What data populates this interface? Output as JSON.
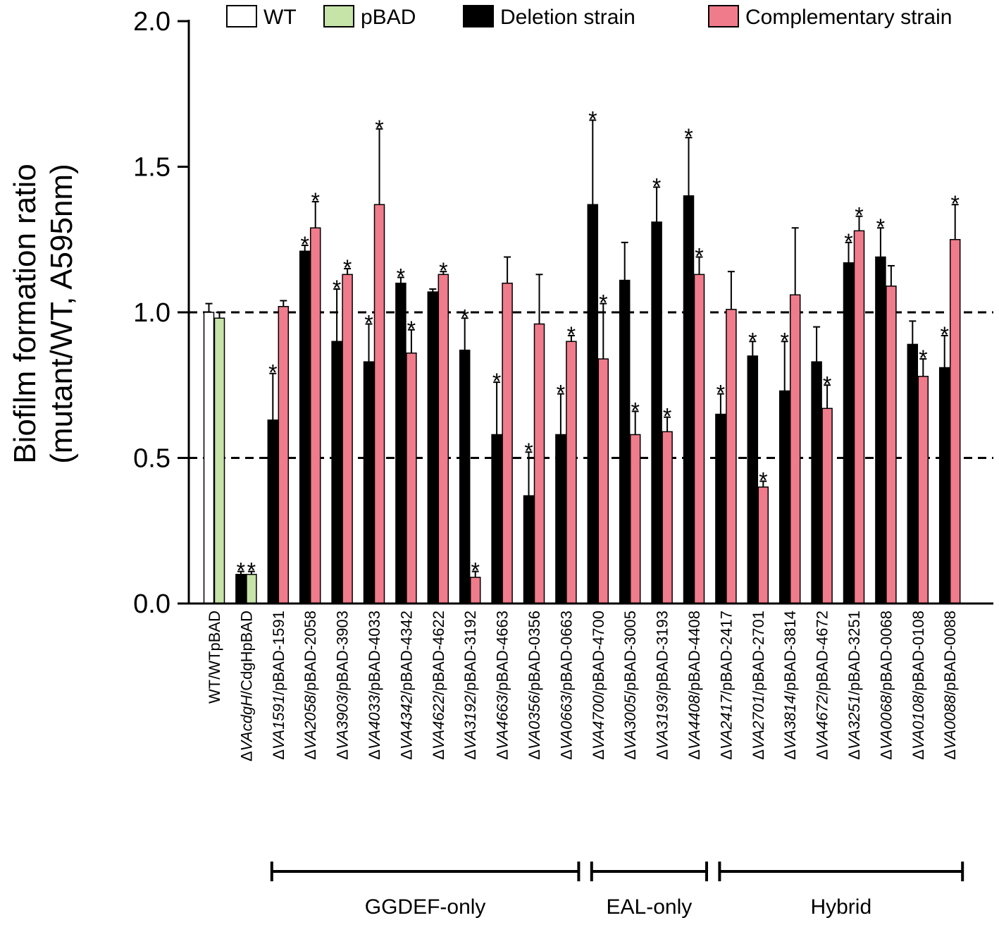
{
  "chart_data": {
    "type": "bar",
    "ylabel_line1": "Biofilm formation ratio",
    "ylabel_line2": "(mutant/WT, A595nm)",
    "ylim": [
      0,
      2.0
    ],
    "yticks": [
      "0.0",
      "0.5",
      "1.0",
      "1.5",
      "2.0"
    ],
    "reference_lines": [
      0.5,
      1.0
    ],
    "legend": [
      {
        "key": "wt",
        "label": "WT",
        "color": "#ffffff"
      },
      {
        "key": "pbad",
        "label": "pBAD",
        "color": "#c6e3a8"
      },
      {
        "key": "deletion",
        "label": "Deletion strain",
        "color": "#000000"
      },
      {
        "key": "complement",
        "label": "Complementary strain",
        "color": "#f07b8b"
      }
    ],
    "categories": [
      {
        "label": "WT/WTpBAD",
        "italic": "",
        "rest": "WT/WTpBAD",
        "bars": [
          {
            "series": "wt",
            "value": 1.0,
            "err": 0.03,
            "star": false
          },
          {
            "series": "pbad",
            "value": 0.98,
            "err": 0.02,
            "star": false
          }
        ]
      },
      {
        "label": "ΔVAcdgH/CdgHpBAD",
        "italic": "VAcdgH",
        "rest": "/CdgHpBAD",
        "bars": [
          {
            "series": "deletion",
            "value": 0.1,
            "err": 0.01,
            "star": true
          },
          {
            "series": "pbad",
            "value": 0.1,
            "err": 0.01,
            "star": true
          }
        ]
      },
      {
        "label": "ΔVA1591/pBAD-1591",
        "italic": "VA1591",
        "rest": "/pBAD-1591",
        "bars": [
          {
            "series": "deletion",
            "value": 0.63,
            "err": 0.16,
            "star": true
          },
          {
            "series": "complement",
            "value": 1.02,
            "err": 0.02,
            "star": false
          }
        ]
      },
      {
        "label": "ΔVA2058/pBAD-2058",
        "italic": "VA2058",
        "rest": "/pBAD-2058",
        "bars": [
          {
            "series": "deletion",
            "value": 1.21,
            "err": 0.02,
            "star": true
          },
          {
            "series": "complement",
            "value": 1.29,
            "err": 0.09,
            "star": true
          }
        ]
      },
      {
        "label": "ΔVA3903/pBAD-3903",
        "italic": "VA3903",
        "rest": "/pBAD-3903",
        "bars": [
          {
            "series": "deletion",
            "value": 0.9,
            "err": 0.18,
            "star": true
          },
          {
            "series": "complement",
            "value": 1.13,
            "err": 0.02,
            "star": true
          }
        ]
      },
      {
        "label": "ΔVA4033/pBAD-4033",
        "italic": "VA4033",
        "rest": "/pBAD-4033",
        "bars": [
          {
            "series": "deletion",
            "value": 0.83,
            "err": 0.13,
            "star": true
          },
          {
            "series": "complement",
            "value": 1.37,
            "err": 0.26,
            "star": true
          }
        ]
      },
      {
        "label": "ΔVA4342/pBAD-4342",
        "italic": "VA4342",
        "rest": "/pBAD-4342",
        "bars": [
          {
            "series": "deletion",
            "value": 1.1,
            "err": 0.02,
            "star": true
          },
          {
            "series": "complement",
            "value": 0.86,
            "err": 0.08,
            "star": true
          }
        ]
      },
      {
        "label": "ΔVA4622/pBAD-4622",
        "italic": "VA4622",
        "rest": "/pBAD-4622",
        "bars": [
          {
            "series": "deletion",
            "value": 1.07,
            "err": 0.01,
            "star": false
          },
          {
            "series": "complement",
            "value": 1.13,
            "err": 0.01,
            "star": true
          }
        ]
      },
      {
        "label": "ΔVA3192/pBAD-3192",
        "italic": "VA3192",
        "rest": "/pBAD-3192",
        "bars": [
          {
            "series": "deletion",
            "value": 0.87,
            "err": 0.11,
            "star": true
          },
          {
            "series": "complement",
            "value": 0.09,
            "err": 0.02,
            "star": true
          }
        ]
      },
      {
        "label": "ΔVA4663/pBAD-4663",
        "italic": "VA4663",
        "rest": "/pBAD-4663",
        "bars": [
          {
            "series": "deletion",
            "value": 0.58,
            "err": 0.18,
            "star": true
          },
          {
            "series": "complement",
            "value": 1.1,
            "err": 0.09,
            "star": false
          }
        ]
      },
      {
        "label": "ΔVA0356/pBAD-0356",
        "italic": "VA0356",
        "rest": "/pBAD-0356",
        "bars": [
          {
            "series": "deletion",
            "value": 0.37,
            "err": 0.15,
            "star": true
          },
          {
            "series": "complement",
            "value": 0.96,
            "err": 0.17,
            "star": false
          }
        ]
      },
      {
        "label": "ΔVA0663/pBAD-0663",
        "italic": "VA0663",
        "rest": "/pBAD-0663",
        "bars": [
          {
            "series": "deletion",
            "value": 0.58,
            "err": 0.14,
            "star": true
          },
          {
            "series": "complement",
            "value": 0.9,
            "err": 0.02,
            "star": true
          }
        ]
      },
      {
        "label": "ΔVA4700/pBAD-4700",
        "italic": "VA4700",
        "rest": "/pBAD-4700",
        "bars": [
          {
            "series": "deletion",
            "value": 1.37,
            "err": 0.29,
            "star": true
          },
          {
            "series": "complement",
            "value": 0.84,
            "err": 0.19,
            "star": true
          }
        ]
      },
      {
        "label": "ΔVA3005/pBAD-3005",
        "italic": "VA3005",
        "rest": "/pBAD-3005",
        "bars": [
          {
            "series": "deletion",
            "value": 1.11,
            "err": 0.13,
            "star": false
          },
          {
            "series": "complement",
            "value": 0.58,
            "err": 0.08,
            "star": true
          }
        ]
      },
      {
        "label": "ΔVA3193/pBAD-3193",
        "italic": "VA3193",
        "rest": "/pBAD-3193",
        "bars": [
          {
            "series": "deletion",
            "value": 1.31,
            "err": 0.12,
            "star": true
          },
          {
            "series": "complement",
            "value": 0.59,
            "err": 0.05,
            "star": true
          }
        ]
      },
      {
        "label": "ΔVA4408/pBAD-4408",
        "italic": "VA4408",
        "rest": "/pBAD-4408",
        "bars": [
          {
            "series": "deletion",
            "value": 1.4,
            "err": 0.2,
            "star": true
          },
          {
            "series": "complement",
            "value": 1.13,
            "err": 0.06,
            "star": true
          }
        ]
      },
      {
        "label": "ΔVA2417/pBAD-2417",
        "italic": "VA2417",
        "rest": "/pBAD-2417",
        "bars": [
          {
            "series": "deletion",
            "value": 0.65,
            "err": 0.07,
            "star": true
          },
          {
            "series": "complement",
            "value": 1.01,
            "err": 0.13,
            "star": false
          }
        ]
      },
      {
        "label": "ΔVA2701/pBAD-2701",
        "italic": "VA2701",
        "rest": "/pBAD-2701",
        "bars": [
          {
            "series": "deletion",
            "value": 0.85,
            "err": 0.05,
            "star": true
          },
          {
            "series": "complement",
            "value": 0.4,
            "err": 0.02,
            "star": true
          }
        ]
      },
      {
        "label": "ΔVA3814/pBAD-3814",
        "italic": "VA3814",
        "rest": "/pBAD-3814",
        "bars": [
          {
            "series": "deletion",
            "value": 0.73,
            "err": 0.17,
            "star": true
          },
          {
            "series": "complement",
            "value": 1.06,
            "err": 0.23,
            "star": false
          }
        ]
      },
      {
        "label": "ΔVA4672/pBAD-4672",
        "italic": "VA4672",
        "rest": "/pBAD-4672",
        "bars": [
          {
            "series": "deletion",
            "value": 0.83,
            "err": 0.12,
            "star": false
          },
          {
            "series": "complement",
            "value": 0.67,
            "err": 0.08,
            "star": true
          }
        ]
      },
      {
        "label": "ΔVA3251/pBAD-3251",
        "italic": "VA3251",
        "rest": "/pBAD-3251",
        "bars": [
          {
            "series": "deletion",
            "value": 1.17,
            "err": 0.07,
            "star": true
          },
          {
            "series": "complement",
            "value": 1.28,
            "err": 0.05,
            "star": true
          }
        ]
      },
      {
        "label": "ΔVA0068/pBAD-0068",
        "italic": "VA0068",
        "rest": "/pBAD-0068",
        "bars": [
          {
            "series": "deletion",
            "value": 1.19,
            "err": 0.1,
            "star": true
          },
          {
            "series": "complement",
            "value": 1.09,
            "err": 0.07,
            "star": false
          }
        ]
      },
      {
        "label": "ΔVA0108/pBAD-0108",
        "italic": "VA0108",
        "rest": "/pBAD-0108",
        "bars": [
          {
            "series": "deletion",
            "value": 0.89,
            "err": 0.08,
            "star": false
          },
          {
            "series": "complement",
            "value": 0.78,
            "err": 0.06,
            "star": true
          }
        ]
      },
      {
        "label": "ΔVA0088/pBAD-0088",
        "italic": "VA0088",
        "rest": "/pBAD-0088",
        "bars": [
          {
            "series": "deletion",
            "value": 0.81,
            "err": 0.11,
            "star": true
          },
          {
            "series": "complement",
            "value": 1.25,
            "err": 0.12,
            "star": true
          }
        ]
      }
    ],
    "groups": [
      {
        "label": "GGDEF-only",
        "first": 2,
        "last": 11
      },
      {
        "label": "EAL-only",
        "first": 12,
        "last": 15
      },
      {
        "label": "Hybrid",
        "first": 16,
        "last": 23
      }
    ]
  }
}
